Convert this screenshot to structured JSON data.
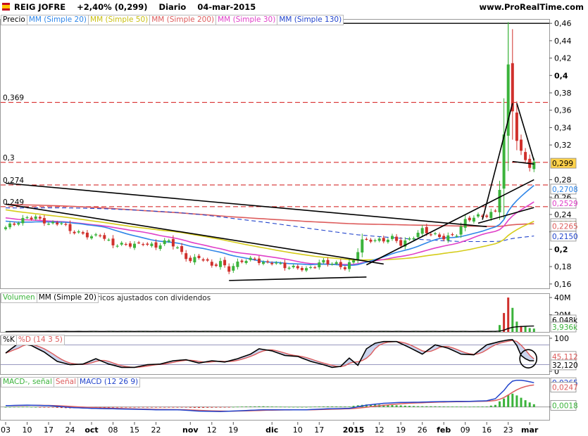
{
  "header": {
    "ticker": "REIG JOFRE",
    "change": "+2,40% (0,299)",
    "period": "Diario",
    "date": "04-mar-2015",
    "website": "www.ProRealTime.com"
  },
  "footer": "© ProRealTime.com Históricos ajustados con dividendos",
  "colors": {
    "up": "#3bb33b",
    "down": "#d0302c",
    "ma20": "#2f86e8",
    "ma50": "#d5cc1a",
    "ma200": "#dd5c5c",
    "ma30": "#e040c8",
    "ma130": "#2244cc",
    "hline": "#d21414",
    "trend": "#000000"
  },
  "panels": {
    "price": {
      "legend": [
        "Precio",
        "MM (Simple 20)",
        "MM (Simple 50)",
        "MM (Simple 200)",
        "MM (Simple 30)",
        "MM (Simple 130)"
      ],
      "hlines": [
        {
          "value": 0.46,
          "label": "0,46",
          "style": "solid"
        },
        {
          "value": 0.369,
          "label": "0,369",
          "style": "dashed"
        },
        {
          "value": 0.3,
          "label": "0,3",
          "style": "dashed"
        },
        {
          "value": 0.274,
          "label": "0,274",
          "style": "dashed"
        },
        {
          "value": 0.249,
          "label": "0,249",
          "style": "dashed"
        }
      ],
      "badges": [
        {
          "value": 0.299,
          "label": "0,299",
          "bg": "#ffd24a",
          "fg": "#000000"
        },
        {
          "value": 0.2708,
          "label": "0,2708",
          "bg": "#ffffff",
          "fg": "#2f86e8"
        },
        {
          "value": 0.2529,
          "label": "0,2529",
          "bg": "#ffffff",
          "fg": "#e040c8"
        },
        {
          "value": 0.2311,
          "label": "0,2311",
          "bg": "#ffffff",
          "fg": "#b8ae10"
        },
        {
          "value": 0.2265,
          "label": "0,2265",
          "bg": "#ffffff",
          "fg": "#dd5c5c"
        },
        {
          "value": 0.215,
          "label": "0,2150",
          "bg": "#ffffff",
          "fg": "#2244cc"
        }
      ]
    },
    "volume": {
      "legend": [
        "Volumen",
        "MM (Simple 20)"
      ],
      "badges": [
        {
          "label": "6,048k",
          "bg": "#ffffff",
          "fg": "#000000"
        },
        {
          "label": "3,936k",
          "bg": "#ffffff",
          "fg": "#3bb33b"
        }
      ]
    },
    "stoch": {
      "legend": [
        "%K",
        "%D (14 3 5)"
      ],
      "badges": [
        {
          "value": 45.112,
          "label": "45,112",
          "bg": "#ffffff",
          "fg": "#dd5c5c"
        },
        {
          "value": 32.12,
          "label": "32,120",
          "bg": "#ffffff",
          "fg": "#000000"
        }
      ]
    },
    "macd": {
      "legend": [
        "MACD-, señal",
        "Señal",
        "MACD (12 26 9)"
      ],
      "badges": [
        {
          "value": 0.0265,
          "label": "0,0265",
          "bg": "#ffffff",
          "fg": "#2244cc"
        },
        {
          "value": 0.0247,
          "label": "0,0247",
          "bg": "#ffffff",
          "fg": "#dd5c5c"
        },
        {
          "value": 0.0018,
          "label": "0,0018",
          "bg": "#ffffff",
          "fg": "#3bb33b"
        }
      ]
    }
  },
  "chart_data": [
    {
      "type": "candlestick",
      "title": "REIG JOFRE",
      "ylim": [
        0.155,
        0.465
      ],
      "yticks": [
        {
          "v": 0.46,
          "l": "0,46"
        },
        {
          "v": 0.44,
          "l": "0,44"
        },
        {
          "v": 0.42,
          "l": "0,42"
        },
        {
          "v": 0.4,
          "l": "0,4"
        },
        {
          "v": 0.38,
          "l": "0,38"
        },
        {
          "v": 0.36,
          "l": "0,36"
        },
        {
          "v": 0.34,
          "l": "0,34"
        },
        {
          "v": 0.32,
          "l": "0,32"
        },
        {
          "v": 0.28,
          "l": "0,28"
        },
        {
          "v": 0.26,
          "l": "0,26"
        },
        {
          "v": 0.24,
          "l": "0,24"
        },
        {
          "v": 0.22,
          "l": "0,22"
        },
        {
          "v": 0.2,
          "l": "0,2"
        },
        {
          "v": 0.18,
          "l": "0,18"
        },
        {
          "v": 0.16,
          "l": "0,16"
        }
      ],
      "xticks": [
        {
          "i": 0,
          "l": "03",
          "bold": false
        },
        {
          "i": 5,
          "l": "10",
          "bold": false
        },
        {
          "i": 10,
          "l": "17",
          "bold": false
        },
        {
          "i": 15,
          "l": "24",
          "bold": false
        },
        {
          "i": 20,
          "l": "oct",
          "bold": true
        },
        {
          "i": 25,
          "l": "08",
          "bold": false
        },
        {
          "i": 30,
          "l": "15",
          "bold": false
        },
        {
          "i": 35,
          "l": "22",
          "bold": false
        },
        {
          "i": 43,
          "l": "nov",
          "bold": true
        },
        {
          "i": 48,
          "l": "12",
          "bold": false
        },
        {
          "i": 53,
          "l": "19",
          "bold": false
        },
        {
          "i": 62,
          "l": "dic",
          "bold": true
        },
        {
          "i": 68,
          "l": "10",
          "bold": false
        },
        {
          "i": 73,
          "l": "17",
          "bold": false
        },
        {
          "i": 81,
          "l": "2015",
          "bold": true
        },
        {
          "i": 87,
          "l": "12",
          "bold": false
        },
        {
          "i": 92,
          "l": "19",
          "bold": false
        },
        {
          "i": 97,
          "l": "26",
          "bold": false
        },
        {
          "i": 102,
          "l": "feb",
          "bold": true
        },
        {
          "i": 107,
          "l": "09",
          "bold": false
        },
        {
          "i": 112,
          "l": "16",
          "bold": false
        },
        {
          "i": 117,
          "l": "23",
          "bold": false
        },
        {
          "i": 122,
          "l": "mar",
          "bold": true
        }
      ],
      "anchors": [
        [
          0,
          0.224
        ],
        [
          3,
          0.232
        ],
        [
          5,
          0.238
        ],
        [
          7,
          0.236
        ],
        [
          10,
          0.228
        ],
        [
          13,
          0.232
        ],
        [
          15,
          0.222
        ],
        [
          18,
          0.216
        ],
        [
          20,
          0.214
        ],
        [
          22,
          0.218
        ],
        [
          25,
          0.205
        ],
        [
          28,
          0.204
        ],
        [
          32,
          0.208
        ],
        [
          35,
          0.202
        ],
        [
          38,
          0.21
        ],
        [
          40,
          0.202
        ],
        [
          43,
          0.186
        ],
        [
          45,
          0.19
        ],
        [
          48,
          0.182
        ],
        [
          50,
          0.186
        ],
        [
          52,
          0.176
        ],
        [
          55,
          0.186
        ],
        [
          58,
          0.19
        ],
        [
          60,
          0.184
        ],
        [
          62,
          0.184
        ],
        [
          65,
          0.18
        ],
        [
          68,
          0.18
        ],
        [
          70,
          0.176
        ],
        [
          72,
          0.18
        ],
        [
          74,
          0.186
        ],
        [
          77,
          0.184
        ],
        [
          79,
          0.178
        ],
        [
          81,
          0.186
        ],
        [
          83,
          0.21
        ],
        [
          85,
          0.212
        ],
        [
          88,
          0.21
        ],
        [
          90,
          0.212
        ],
        [
          92,
          0.206
        ],
        [
          95,
          0.216
        ],
        [
          97,
          0.222
        ],
        [
          99,
          0.216
        ],
        [
          102,
          0.214
        ],
        [
          105,
          0.218
        ],
        [
          107,
          0.232
        ],
        [
          110,
          0.238
        ],
        [
          112,
          0.24
        ],
        [
          114,
          0.244
        ],
        [
          115,
          0.27
        ],
        [
          116,
          0.33
        ],
        [
          117,
          0.41
        ],
        [
          118,
          0.36
        ],
        [
          119,
          0.325
        ],
        [
          120,
          0.312
        ],
        [
          121,
          0.305
        ],
        [
          122,
          0.296
        ],
        [
          123,
          0.299
        ]
      ],
      "trendlines": [
        [
          [
            0,
            0.276
          ],
          [
            112,
            0.226
          ]
        ],
        [
          [
            0,
            0.252
          ],
          [
            88,
            0.183
          ]
        ],
        [
          [
            52,
            0.164
          ],
          [
            84,
            0.168
          ]
        ],
        [
          [
            84,
            0.182
          ],
          [
            123,
            0.28
          ]
        ],
        [
          [
            110,
            0.23
          ],
          [
            123,
            0.248
          ]
        ],
        [
          [
            111,
            0.234
          ],
          [
            118,
            0.368
          ]
        ],
        [
          [
            119,
            0.368
          ],
          [
            123,
            0.302
          ]
        ],
        [
          [
            118,
            0.301
          ],
          [
            123,
            0.298
          ]
        ]
      ]
    },
    {
      "type": "bar",
      "title": "Volumen",
      "ylim": [
        0,
        45000000
      ],
      "yticks": [
        {
          "v": 40000000,
          "l": "40M"
        },
        {
          "v": 20000000,
          "l": "20M"
        }
      ],
      "spikes": [
        [
          115,
          8000000
        ],
        [
          116,
          22000000
        ],
        [
          117,
          40000000
        ],
        [
          118,
          28000000
        ],
        [
          119,
          12000000
        ],
        [
          120,
          7000000
        ],
        [
          121,
          6000000
        ],
        [
          122,
          4500000
        ],
        [
          123,
          3936000
        ]
      ]
    },
    {
      "type": "line",
      "title": "%K %D (14 3 5)",
      "ylim": [
        0,
        100
      ],
      "yticks": [
        {
          "v": 100,
          "l": "100"
        },
        {
          "v": 0,
          "l": "0"
        }
      ],
      "levels": [
        80,
        20
      ],
      "anchors": [
        [
          0,
          55
        ],
        [
          3,
          85
        ],
        [
          6,
          78
        ],
        [
          9,
          58
        ],
        [
          12,
          30
        ],
        [
          15,
          20
        ],
        [
          18,
          22
        ],
        [
          21,
          38
        ],
        [
          24,
          22
        ],
        [
          27,
          12
        ],
        [
          30,
          12
        ],
        [
          33,
          20
        ],
        [
          36,
          22
        ],
        [
          39,
          32
        ],
        [
          42,
          35
        ],
        [
          45,
          25
        ],
        [
          48,
          32
        ],
        [
          51,
          28
        ],
        [
          54,
          38
        ],
        [
          57,
          52
        ],
        [
          59,
          68
        ],
        [
          62,
          62
        ],
        [
          65,
          48
        ],
        [
          68,
          45
        ],
        [
          71,
          30
        ],
        [
          74,
          20
        ],
        [
          76,
          12
        ],
        [
          78,
          15
        ],
        [
          80,
          40
        ],
        [
          82,
          18
        ],
        [
          84,
          68
        ],
        [
          86,
          85
        ],
        [
          88,
          90
        ],
        [
          91,
          90
        ],
        [
          94,
          72
        ],
        [
          97,
          52
        ],
        [
          100,
          80
        ],
        [
          103,
          70
        ],
        [
          106,
          52
        ],
        [
          109,
          50
        ],
        [
          112,
          80
        ],
        [
          115,
          90
        ],
        [
          117,
          95
        ],
        [
          118,
          96
        ],
        [
          119,
          78
        ],
        [
          120,
          48
        ],
        [
          121,
          38
        ],
        [
          122,
          32
        ],
        [
          123,
          32
        ]
      ]
    },
    {
      "type": "line",
      "title": "MACD (12 26 9)",
      "ylim": [
        -0.014,
        0.032
      ],
      "yticks": [
        {
          "v": 0,
          "l": "0"
        }
      ],
      "anchors": [
        [
          0,
          0.0015
        ],
        [
          5,
          0.002
        ],
        [
          10,
          0.0015
        ],
        [
          15,
          -0.0005
        ],
        [
          20,
          -0.0015
        ],
        [
          25,
          -0.002
        ],
        [
          30,
          -0.0025
        ],
        [
          35,
          -0.003
        ],
        [
          40,
          -0.003
        ],
        [
          45,
          -0.0045
        ],
        [
          50,
          -0.005
        ],
        [
          55,
          -0.004
        ],
        [
          60,
          -0.003
        ],
        [
          65,
          -0.003
        ],
        [
          70,
          -0.003
        ],
        [
          75,
          -0.002
        ],
        [
          80,
          -0.0015
        ],
        [
          84,
          0.002
        ],
        [
          88,
          0.004
        ],
        [
          92,
          0.005
        ],
        [
          96,
          0.0052
        ],
        [
          100,
          0.0058
        ],
        [
          104,
          0.006
        ],
        [
          108,
          0.0062
        ],
        [
          112,
          0.0068
        ],
        [
          114,
          0.009
        ],
        [
          116,
          0.018
        ],
        [
          117,
          0.024
        ],
        [
          118,
          0.0282
        ],
        [
          119,
          0.0292
        ],
        [
          120,
          0.0292
        ],
        [
          121,
          0.0285
        ],
        [
          122,
          0.0275
        ],
        [
          123,
          0.0265
        ]
      ]
    }
  ]
}
